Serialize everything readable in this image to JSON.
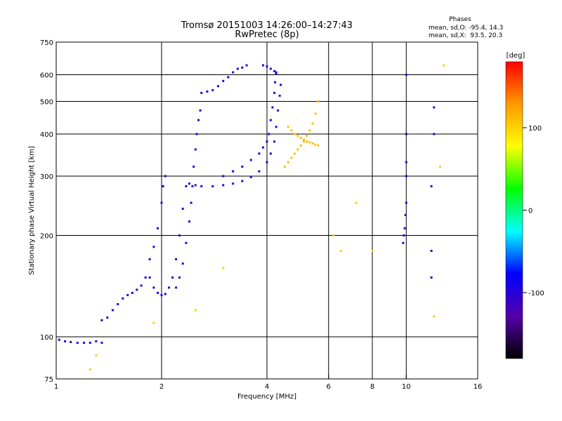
{
  "chart_data": {
    "type": "scatter",
    "title": "Tromsø 20151003 14:26:00–14:27:43",
    "subtitle": "RwPretec (8p)",
    "xlabel": "Frequency [MHz]",
    "ylabel": "Stationary phase Virtual Height [km]",
    "xscale": "log",
    "yscale": "log",
    "xlim": [
      1,
      16
    ],
    "ylim": [
      75,
      750
    ],
    "grid": true,
    "x_ticks": [
      1,
      2,
      4,
      6,
      8,
      10,
      16
    ],
    "x_tick_labels": [
      "1",
      "2",
      "4",
      "6",
      "8",
      "10",
      "16"
    ],
    "x_grid": [
      2,
      4,
      6,
      8,
      10
    ],
    "y_ticks": [
      75,
      100,
      200,
      300,
      400,
      500,
      600,
      750
    ],
    "y_tick_labels": [
      "75",
      "100",
      "200",
      "300",
      "400",
      "500",
      "600",
      "750"
    ],
    "y_grid": [
      100,
      200,
      300,
      400,
      500,
      600
    ],
    "stats": {
      "header": "Phases",
      "line_o": "mean, sd,O: -95.4, 14.3",
      "line_x": "mean, sd,X:  93.5, 20.3"
    },
    "colorbar": {
      "label": "[deg]",
      "range": [
        -180,
        180
      ],
      "ticks": [
        100,
        0,
        -100
      ],
      "tick_labels": [
        "100",
        "0",
        "-100"
      ],
      "colors": [
        "#ff0000",
        "#ff9900",
        "#ffff00",
        "#00ff00",
        "#00ffff",
        "#0000ff",
        "#5500aa",
        "#000000"
      ]
    },
    "traces": [
      {
        "name": "",
        "phase": -100,
        "points": [
          [
            1.02,
            98
          ],
          [
            1.06,
            97
          ],
          [
            1.1,
            96.5
          ],
          [
            1.15,
            96
          ],
          [
            1.2,
            96
          ],
          [
            1.25,
            96
          ],
          [
            1.3,
            97
          ],
          [
            1.35,
            96
          ]
        ]
      },
      {
        "name": "",
        "phase": -100,
        "points": [
          [
            1.35,
            112
          ],
          [
            1.4,
            114
          ],
          [
            1.45,
            120
          ],
          [
            1.5,
            125
          ],
          [
            1.55,
            130
          ],
          [
            1.6,
            133
          ],
          [
            1.65,
            135
          ],
          [
            1.7,
            138
          ],
          [
            1.75,
            142
          ],
          [
            1.8,
            150
          ]
        ]
      },
      {
        "name": "",
        "phase": -100,
        "points": [
          [
            1.85,
            170
          ],
          [
            1.9,
            185
          ],
          [
            1.95,
            210
          ],
          [
            2.0,
            250
          ],
          [
            2.02,
            280
          ],
          [
            2.05,
            300
          ]
        ]
      },
      {
        "name": "",
        "phase": -100,
        "points": [
          [
            1.85,
            150
          ],
          [
            1.9,
            140
          ],
          [
            1.95,
            135
          ],
          [
            2.0,
            133
          ],
          [
            2.05,
            134
          ],
          [
            2.1,
            140
          ],
          [
            2.15,
            150
          ],
          [
            2.2,
            170
          ],
          [
            2.25,
            200
          ],
          [
            2.3,
            240
          ],
          [
            2.35,
            280
          ]
        ]
      },
      {
        "name": "",
        "phase": -100,
        "points": [
          [
            2.2,
            140
          ],
          [
            2.25,
            150
          ],
          [
            2.3,
            165
          ],
          [
            2.35,
            190
          ],
          [
            2.4,
            220
          ],
          [
            2.43,
            250
          ],
          [
            2.45,
            280
          ],
          [
            2.47,
            320
          ],
          [
            2.5,
            360
          ],
          [
            2.52,
            400
          ],
          [
            2.55,
            440
          ],
          [
            2.58,
            470
          ]
        ]
      },
      {
        "name": "",
        "phase": -100,
        "points": [
          [
            2.4,
            285
          ],
          [
            2.5,
            282
          ],
          [
            2.6,
            280
          ],
          [
            2.8,
            280
          ],
          [
            3.0,
            282
          ],
          [
            3.2,
            285
          ],
          [
            3.4,
            290
          ],
          [
            3.6,
            298
          ],
          [
            3.8,
            310
          ],
          [
            4.0,
            330
          ],
          [
            4.1,
            350
          ],
          [
            4.2,
            380
          ],
          [
            4.25,
            420
          ],
          [
            4.3,
            470
          ],
          [
            4.35,
            520
          ],
          [
            4.38,
            560
          ]
        ]
      },
      {
        "name": "",
        "phase": -100,
        "points": [
          [
            3.0,
            300
          ],
          [
            3.2,
            310
          ],
          [
            3.4,
            320
          ],
          [
            3.6,
            335
          ],
          [
            3.8,
            350
          ],
          [
            3.9,
            365
          ],
          [
            4.0,
            380
          ],
          [
            4.05,
            400
          ],
          [
            4.1,
            440
          ],
          [
            4.15,
            480
          ],
          [
            4.2,
            530
          ],
          [
            4.22,
            570
          ],
          [
            4.25,
            610
          ]
        ]
      },
      {
        "name": "",
        "phase": -100,
        "points": [
          [
            2.6,
            530
          ],
          [
            2.7,
            535
          ],
          [
            2.8,
            540
          ],
          [
            2.9,
            555
          ],
          [
            3.0,
            575
          ],
          [
            3.1,
            590
          ],
          [
            3.2,
            610
          ],
          [
            3.3,
            625
          ],
          [
            3.4,
            630
          ],
          [
            3.5,
            640
          ]
        ]
      },
      {
        "name": "",
        "phase": -100,
        "points": [
          [
            3.9,
            640
          ],
          [
            4.0,
            635
          ],
          [
            4.1,
            625
          ],
          [
            4.2,
            615
          ],
          [
            4.25,
            605
          ]
        ]
      },
      {
        "name": "",
        "phase": 110,
        "points": [
          [
            4.5,
            320
          ],
          [
            4.6,
            330
          ],
          [
            4.7,
            340
          ],
          [
            4.8,
            350
          ],
          [
            4.9,
            360
          ],
          [
            5.0,
            370
          ],
          [
            5.1,
            380
          ],
          [
            5.2,
            395
          ],
          [
            5.3,
            410
          ],
          [
            5.4,
            430
          ],
          [
            5.5,
            460
          ],
          [
            5.6,
            500
          ]
        ]
      },
      {
        "name": "",
        "phase": 110,
        "points": [
          [
            4.6,
            420
          ],
          [
            4.7,
            410
          ],
          [
            4.8,
            400
          ],
          [
            4.9,
            395
          ],
          [
            5.0,
            390
          ],
          [
            5.1,
            385
          ],
          [
            5.2,
            380
          ],
          [
            5.3,
            378
          ],
          [
            5.4,
            375
          ],
          [
            5.5,
            372
          ],
          [
            5.6,
            370
          ]
        ]
      },
      {
        "name": "",
        "phase": -100,
        "points": [
          [
            9.8,
            190
          ],
          [
            9.85,
            200
          ],
          [
            9.9,
            210
          ],
          [
            9.95,
            230
          ],
          [
            10.0,
            250
          ],
          [
            10.0,
            300
          ],
          [
            10.0,
            330
          ],
          [
            10.0,
            400
          ],
          [
            10.0,
            600
          ]
        ]
      },
      {
        "name": "",
        "phase": -100,
        "points": [
          [
            12.0,
            480
          ],
          [
            12.0,
            400
          ],
          [
            11.8,
            280
          ],
          [
            11.8,
            180
          ],
          [
            11.8,
            150
          ]
        ]
      },
      {
        "name": "",
        "phase": 100,
        "points": [
          [
            1.3,
            88
          ],
          [
            1.25,
            80
          ],
          [
            1.9,
            110
          ],
          [
            2.5,
            120
          ],
          [
            3.0,
            160
          ],
          [
            6.2,
            200
          ],
          [
            6.5,
            180
          ],
          [
            7.2,
            250
          ],
          [
            8.0,
            180
          ],
          [
            12.0,
            115
          ],
          [
            12.5,
            320
          ],
          [
            12.8,
            640
          ]
        ]
      }
    ]
  }
}
